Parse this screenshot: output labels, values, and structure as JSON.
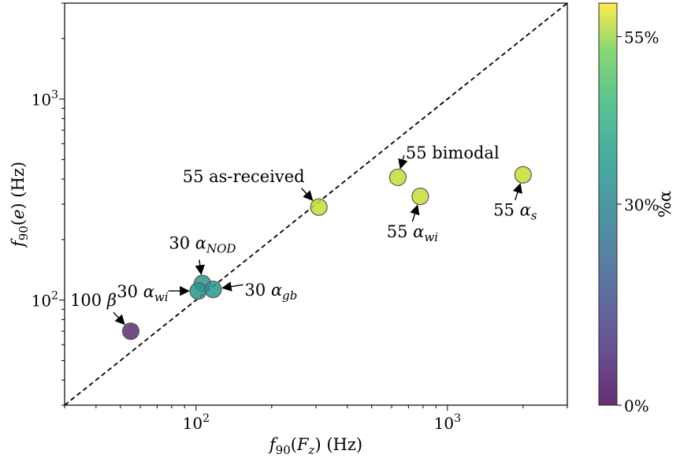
{
  "chart_data": {
    "type": "scatter",
    "title": "",
    "xlabel_parts": [
      {
        "t": "f",
        "style": "italic"
      },
      {
        "t": "90",
        "style": "sub"
      },
      {
        "t": "(",
        "style": "normal"
      },
      {
        "t": "F",
        "style": "italic"
      },
      {
        "t": "z",
        "style": "italic-sub"
      },
      {
        "t": ") (Hz)",
        "style": "normal"
      }
    ],
    "ylabel_parts": [
      {
        "t": "f",
        "style": "italic"
      },
      {
        "t": "90",
        "style": "sub"
      },
      {
        "t": "(",
        "style": "normal"
      },
      {
        "t": "e",
        "style": "italic"
      },
      {
        "t": ") (Hz)",
        "style": "normal"
      }
    ],
    "x_scale": "log",
    "y_scale": "log",
    "xlim": [
      30,
      3000
    ],
    "ylim": [
      30,
      3000
    ],
    "grid": false,
    "x_ticks": [
      {
        "value": 100,
        "base": "10",
        "exp": "2"
      },
      {
        "value": 1000,
        "base": "10",
        "exp": "3"
      }
    ],
    "y_ticks": [
      {
        "value": 100,
        "base": "10",
        "exp": "2"
      },
      {
        "value": 1000,
        "base": "10",
        "exp": "3"
      }
    ],
    "reference_line": {
      "style": "dashed",
      "color": "#000000",
      "from": [
        30,
        30
      ],
      "to": [
        3000,
        3000
      ]
    },
    "colormap": {
      "name": "viridis",
      "label": "%α",
      "range": [
        0,
        60
      ],
      "ticks": [
        {
          "value": 0,
          "label": "0%"
        },
        {
          "value": 30,
          "label": "30%"
        },
        {
          "value": 55,
          "label": "55%"
        }
      ]
    },
    "points": [
      {
        "x": 55,
        "y": 70,
        "alpha_pct": 0,
        "color": "#5b2d6b",
        "label_parts": [
          {
            "t": "100 ",
            "style": "normal"
          },
          {
            "t": "β",
            "style": "italic"
          }
        ],
        "label_pos": "upper-left"
      },
      {
        "x": 106,
        "y": 121,
        "alpha_pct": 30,
        "color": "#2a958d",
        "label_parts": [
          {
            "t": "30 ",
            "style": "normal"
          },
          {
            "t": "α",
            "style": "italic"
          },
          {
            "t": "NOD",
            "style": "italic-sub"
          }
        ],
        "label_pos": "above"
      },
      {
        "x": 102,
        "y": 111,
        "alpha_pct": 30,
        "color": "#2a958d",
        "label_parts": [
          {
            "t": "30 ",
            "style": "normal"
          },
          {
            "t": "α",
            "style": "italic"
          },
          {
            "t": "wi",
            "style": "italic-sub"
          }
        ],
        "label_pos": "left"
      },
      {
        "x": 117,
        "y": 113,
        "alpha_pct": 30,
        "color": "#2a958d",
        "label_parts": [
          {
            "t": "30 ",
            "style": "normal"
          },
          {
            "t": "α",
            "style": "italic"
          },
          {
            "t": "gb",
            "style": "italic-sub"
          }
        ],
        "label_pos": "right"
      },
      {
        "x": 308,
        "y": 290,
        "alpha_pct": 55,
        "color": "#c8dc36",
        "label_parts": [
          {
            "t": "55 as-received",
            "style": "normal"
          }
        ],
        "label_pos": "upper-left"
      },
      {
        "x": 635,
        "y": 408,
        "alpha_pct": 55,
        "color": "#c8dc36",
        "label_parts": [
          {
            "t": "55 bimodal",
            "style": "normal"
          }
        ],
        "label_pos": "upper-right"
      },
      {
        "x": 780,
        "y": 328,
        "alpha_pct": 55,
        "color": "#c8dc36",
        "label_parts": [
          {
            "t": "55 ",
            "style": "normal"
          },
          {
            "t": "α",
            "style": "italic"
          },
          {
            "t": "wi",
            "style": "italic-sub"
          }
        ],
        "label_pos": "below-left"
      },
      {
        "x": 2000,
        "y": 420,
        "alpha_pct": 55,
        "color": "#c8dc36",
        "label_parts": [
          {
            "t": "55 ",
            "style": "normal"
          },
          {
            "t": "α",
            "style": "italic"
          },
          {
            "t": "s",
            "style": "italic-sub"
          }
        ],
        "label_pos": "below-left"
      }
    ]
  }
}
